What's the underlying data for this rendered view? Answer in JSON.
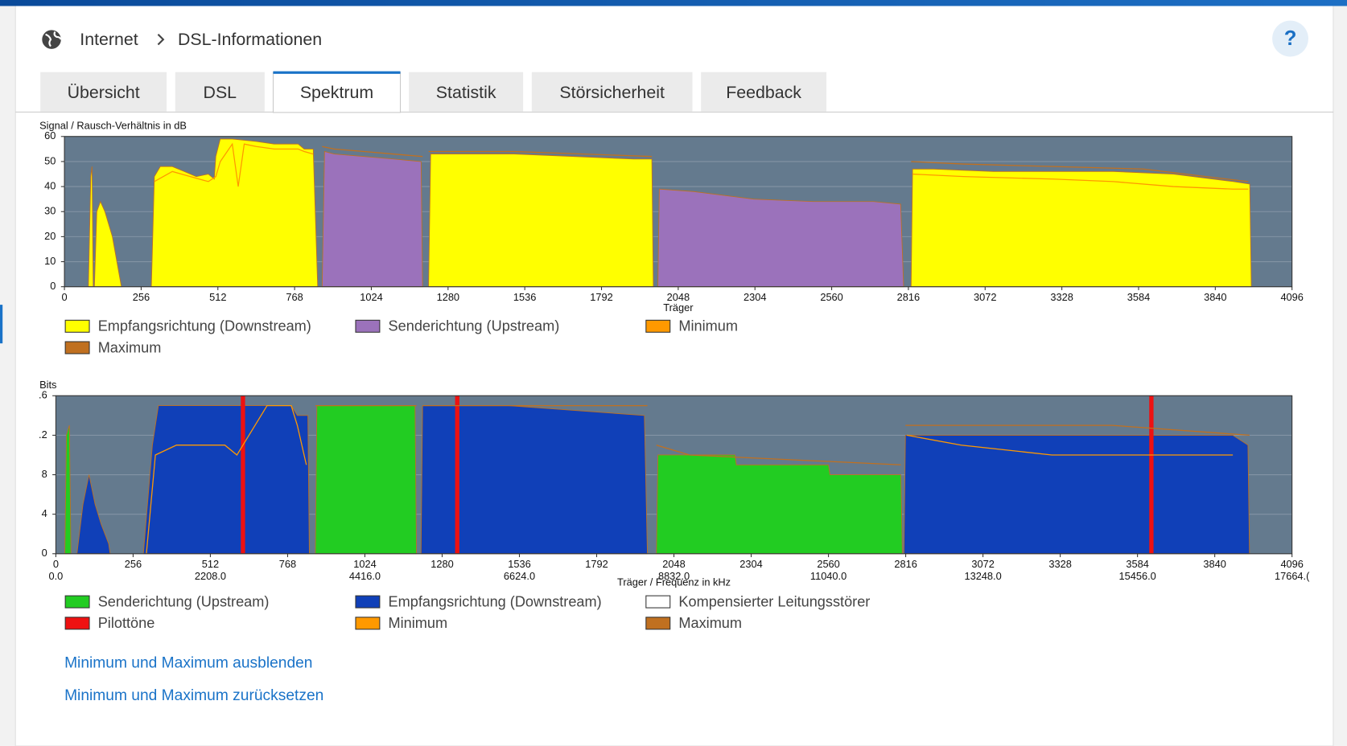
{
  "header": {
    "breadcrumb": [
      "Internet",
      "DSL-Informationen"
    ],
    "help": "?"
  },
  "tabs": [
    "Übersicht",
    "DSL",
    "Spektrum",
    "Statistik",
    "Störsicherheit",
    "Feedback"
  ],
  "active_tab": 2,
  "chart_data": [
    {
      "type": "area",
      "ylabel": "Signal / Rausch-Verhältnis in dB",
      "xlabel": "Träger",
      "xlim": [
        0,
        4096
      ],
      "xticks": [
        0,
        256,
        512,
        768,
        1024,
        1280,
        1536,
        1792,
        2048,
        2304,
        2560,
        2816,
        3072,
        3328,
        3584,
        3840,
        4096
      ],
      "ylim": [
        0,
        60
      ],
      "yticks": [
        0,
        10,
        20,
        30,
        40,
        50,
        60
      ],
      "grid": true,
      "series": [
        {
          "name": "Empfangsrichtung (Downstream)",
          "color": "#ffff00",
          "style": "area",
          "x": [
            80,
            88,
            92,
            96,
            null,
            100,
            108,
            120,
            135,
            160,
            190,
            null,
            290,
            300,
            320,
            360,
            400,
            440,
            480,
            500,
            505,
            520,
            560,
            640,
            700,
            780,
            800,
            830,
            845,
            null,
            1215,
            1222,
            1300,
            1500,
            1700,
            1900,
            1960,
            1965,
            null,
            2825,
            2830,
            2900,
            3100,
            3300,
            3500,
            3700,
            3900,
            3955,
            3960
          ],
          "values": [
            0,
            44,
            48,
            0,
            null,
            0,
            30,
            34,
            30,
            20,
            0,
            null,
            0,
            44,
            48,
            48,
            46,
            44,
            45,
            43,
            52,
            59,
            59,
            58,
            57,
            57,
            55,
            55,
            0,
            null,
            0,
            53,
            53,
            53,
            52,
            51,
            51,
            0,
            null,
            0,
            47,
            47,
            46,
            46,
            46,
            45,
            42,
            41,
            0
          ]
        },
        {
          "name": "Senderichtung (Upstream)",
          "color": "#9b72bb",
          "style": "area",
          "x": [
            860,
            868,
            900,
            1000,
            1100,
            1190,
            1195,
            null,
            1980,
            1985,
            2100,
            2300,
            2500,
            2700,
            2790,
            2800
          ],
          "values": [
            0,
            54,
            53,
            52,
            51,
            50,
            0,
            null,
            0,
            39,
            38,
            35,
            34,
            34,
            33,
            0
          ]
        },
        {
          "name": "Minimum",
          "color": "#ff9900",
          "style": "line",
          "x": [
            300,
            360,
            420,
            480,
            505,
            520,
            560,
            580,
            600,
            640,
            700,
            780,
            800,
            830,
            null,
            2830,
            3000,
            3300,
            3500,
            3700,
            3900,
            3950
          ],
          "values": [
            42,
            46,
            44,
            42,
            44,
            50,
            57,
            40,
            57,
            56,
            55,
            55,
            54,
            53,
            null,
            45,
            44,
            43,
            42,
            40,
            39,
            39
          ]
        },
        {
          "name": "Maximum",
          "color": "#c07020",
          "style": "line",
          "x": [
            860,
            900,
            1000,
            1195,
            null,
            1215,
            1500,
            1960,
            null,
            2825,
            3000,
            3300,
            3600,
            3950
          ],
          "values": [
            56,
            55,
            54,
            52,
            null,
            54,
            54,
            52,
            null,
            50,
            49,
            48,
            47,
            42
          ]
        }
      ]
    },
    {
      "type": "area",
      "ylabel": "Bits",
      "xlabel": "Träger / Frequenz in kHz",
      "xlim": [
        0,
        4096
      ],
      "xticks": [
        0,
        256,
        512,
        768,
        1024,
        1280,
        1536,
        1792,
        2048,
        2304,
        2560,
        2816,
        3072,
        3328,
        3584,
        3840,
        4096
      ],
      "x2lim": [
        0,
        17664
      ],
      "x2ticks": [
        {
          "value": 0,
          "label": "0.0"
        },
        {
          "value": 2208,
          "label": "2208.0"
        },
        {
          "value": 4416,
          "label": "4416.0"
        },
        {
          "value": 6624,
          "label": "6624.0"
        },
        {
          "value": 8832,
          "label": "8832.0"
        },
        {
          "value": 11040,
          "label": "11040.0"
        },
        {
          "value": 13248,
          "label": "13248.0"
        },
        {
          "value": 15456,
          "label": "15456.0"
        },
        {
          "value": 17664,
          "label": "17664.("
        }
      ],
      "ylim": [
        0,
        16
      ],
      "yticks": [
        0,
        4,
        8,
        {
          "value": 12,
          "label": ".2"
        },
        {
          "value": 16,
          "label": ".6"
        }
      ],
      "grid": true,
      "series": [
        {
          "name": "Senderichtung (Upstream)",
          "color": "#22cc22",
          "style": "area",
          "x": [
            30,
            35,
            45,
            50,
            null,
            860,
            865,
            1190,
            1195,
            null,
            1990,
            1995,
            2250,
            2255,
            2560,
            2565,
            2800,
            2805
          ],
          "values": [
            0,
            12,
            13,
            0,
            null,
            0,
            15,
            15,
            0,
            null,
            0,
            10,
            10,
            9,
            9,
            8,
            8,
            0
          ]
        },
        {
          "name": "Empfangsrichtung (Downstream)",
          "color": "#1040b8",
          "style": "area",
          "x": [
            70,
            90,
            110,
            130,
            150,
            175,
            180,
            null,
            290,
            320,
            340,
            400,
            500,
            520,
            780,
            800,
            835,
            840,
            null,
            1210,
            1215,
            1500,
            1950,
            1960,
            null,
            2810,
            2815,
            3000,
            3300,
            3600,
            3900,
            3950,
            3955
          ],
          "values": [
            0,
            5,
            8,
            5,
            3,
            1,
            0,
            null,
            0,
            11,
            15,
            15,
            15,
            15,
            15,
            14,
            14,
            0,
            null,
            0,
            15,
            15,
            14,
            0,
            null,
            0,
            12,
            12,
            12,
            12,
            12,
            11,
            0
          ]
        },
        {
          "name": "Kompensierter Leitungsstörer",
          "color": "#ffffff",
          "style": "none"
        },
        {
          "name": "Pilottöne",
          "color": "#ee1111",
          "style": "bar",
          "x": [
            620,
            1330,
            3630
          ],
          "values": [
            16,
            16,
            16
          ]
        },
        {
          "name": "Minimum",
          "color": "#ff9900",
          "style": "line",
          "x": [
            300,
            330,
            400,
            560,
            600,
            700,
            780,
            800,
            830,
            null,
            2820,
            3000,
            3300,
            3600,
            3900
          ],
          "values": [
            0,
            10,
            11,
            11,
            10,
            15,
            15,
            13,
            9,
            null,
            12,
            11,
            10,
            10,
            10
          ]
        },
        {
          "name": "Maximum",
          "color": "#c07020",
          "style": "line",
          "x": [
            860,
            1195,
            null,
            1215,
            1960,
            null,
            1990,
            2100,
            2800,
            null,
            2815,
            3500,
            3955
          ],
          "values": [
            15,
            15,
            null,
            15,
            15,
            null,
            11,
            10,
            9,
            null,
            13,
            13,
            12
          ]
        }
      ]
    }
  ],
  "links": [
    "Minimum und Maximum ausblenden",
    "Minimum und Maximum zurücksetzen"
  ]
}
